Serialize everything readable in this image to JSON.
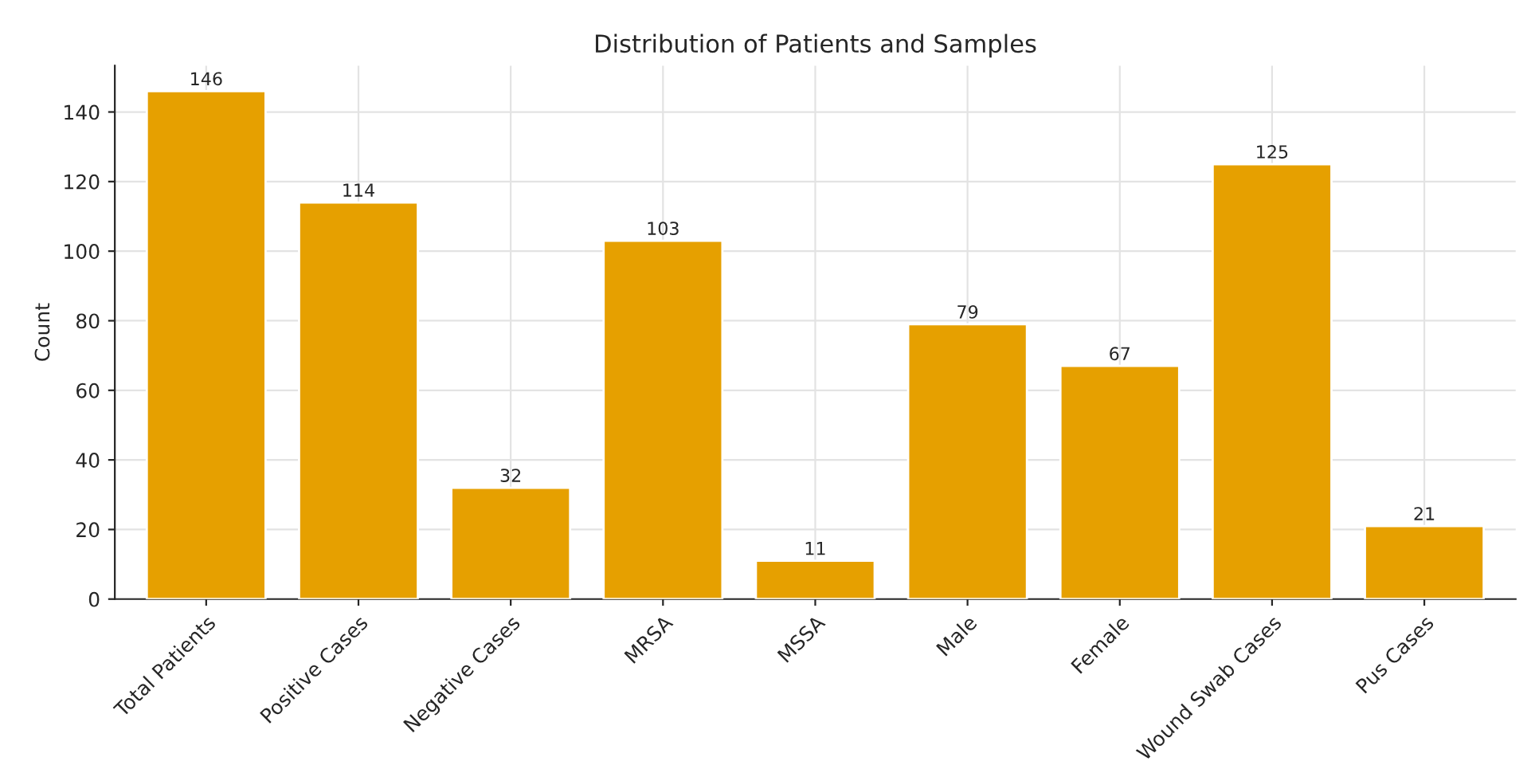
{
  "chart_data": {
    "type": "bar",
    "title": "Distribution of Patients and Samples",
    "ylabel": "Count",
    "categories": [
      "Total Patients",
      "Positive Cases",
      "Negative Cases",
      "MRSA",
      "MSSA",
      "Male",
      "Female",
      "Wound Swab Cases",
      "Pus Cases"
    ],
    "values": [
      146,
      114,
      32,
      103,
      11,
      79,
      67,
      125,
      21
    ],
    "color": "#e6a000",
    "ylim": [
      0,
      153.3
    ],
    "yticks": [
      0,
      20,
      40,
      60,
      80,
      100,
      120,
      140
    ],
    "grid": true,
    "data_labels": true
  }
}
